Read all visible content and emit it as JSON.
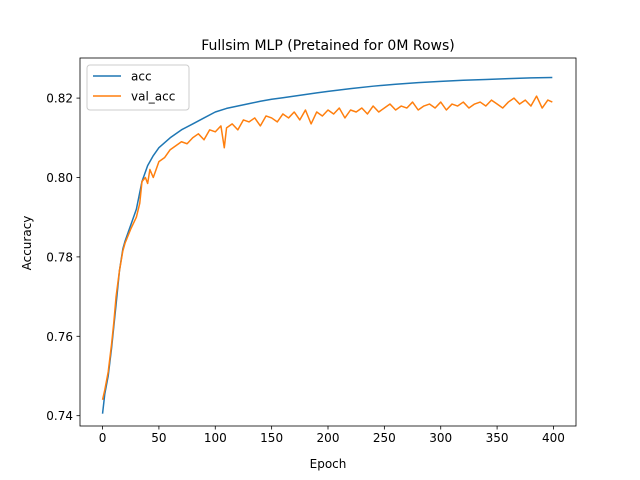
{
  "chart_data": {
    "type": "line",
    "title": "Fullsim MLP (Pretained for 0M Rows)",
    "xlabel": "Epoch",
    "ylabel": "Accuracy",
    "xlim": [
      -20,
      420
    ],
    "ylim": [
      0.7374,
      0.8301
    ],
    "xticks": [
      0,
      50,
      100,
      150,
      200,
      250,
      300,
      350,
      400
    ],
    "yticks": [
      0.74,
      0.76,
      0.78,
      0.8,
      0.82
    ],
    "ytick_labels": [
      "0.74",
      "0.76",
      "0.78",
      "0.80",
      "0.82"
    ],
    "grid": false,
    "legend_position": "top-left",
    "series": [
      {
        "name": "acc",
        "color": "#1f77b4",
        "x": [
          0,
          2,
          5,
          8,
          10,
          12,
          15,
          18,
          20,
          25,
          30,
          35,
          40,
          45,
          50,
          60,
          70,
          80,
          90,
          100,
          110,
          120,
          130,
          140,
          150,
          160,
          170,
          180,
          190,
          200,
          220,
          240,
          260,
          280,
          300,
          320,
          340,
          360,
          380,
          399
        ],
        "values": [
          0.7405,
          0.7455,
          0.75,
          0.757,
          0.7625,
          0.768,
          0.7765,
          0.782,
          0.784,
          0.788,
          0.792,
          0.799,
          0.803,
          0.8055,
          0.8075,
          0.81,
          0.812,
          0.8135,
          0.815,
          0.8165,
          0.8174,
          0.818,
          0.8186,
          0.8192,
          0.8197,
          0.8201,
          0.8205,
          0.8209,
          0.8213,
          0.8217,
          0.8224,
          0.823,
          0.8235,
          0.8239,
          0.8242,
          0.8245,
          0.8247,
          0.8249,
          0.8251,
          0.8252
        ]
      },
      {
        "name": "val_acc",
        "color": "#ff7f0e",
        "x": [
          0,
          2,
          5,
          8,
          10,
          12,
          15,
          18,
          20,
          25,
          30,
          33,
          35,
          38,
          40,
          42,
          45,
          50,
          55,
          60,
          65,
          70,
          75,
          80,
          85,
          90,
          95,
          100,
          105,
          108,
          110,
          115,
          120,
          125,
          130,
          135,
          140,
          145,
          150,
          155,
          160,
          165,
          170,
          175,
          180,
          185,
          190,
          195,
          200,
          205,
          210,
          215,
          220,
          225,
          230,
          235,
          240,
          245,
          250,
          255,
          260,
          265,
          270,
          275,
          280,
          285,
          290,
          295,
          300,
          305,
          310,
          315,
          320,
          325,
          330,
          335,
          340,
          345,
          350,
          355,
          360,
          365,
          370,
          375,
          380,
          385,
          390,
          395,
          399
        ],
        "values": [
          0.744,
          0.7465,
          0.751,
          0.758,
          0.7635,
          0.77,
          0.7765,
          0.7815,
          0.7835,
          0.787,
          0.79,
          0.7935,
          0.799,
          0.8,
          0.7985,
          0.802,
          0.8,
          0.804,
          0.805,
          0.807,
          0.808,
          0.809,
          0.8085,
          0.81,
          0.811,
          0.8095,
          0.812,
          0.8115,
          0.813,
          0.8075,
          0.8125,
          0.8135,
          0.812,
          0.8145,
          0.814,
          0.815,
          0.813,
          0.8155,
          0.815,
          0.814,
          0.816,
          0.815,
          0.8165,
          0.8145,
          0.817,
          0.8135,
          0.8165,
          0.8155,
          0.817,
          0.816,
          0.8175,
          0.815,
          0.817,
          0.8165,
          0.8175,
          0.816,
          0.818,
          0.8165,
          0.8175,
          0.8185,
          0.817,
          0.818,
          0.8175,
          0.819,
          0.817,
          0.818,
          0.8185,
          0.8175,
          0.819,
          0.817,
          0.8185,
          0.818,
          0.819,
          0.8175,
          0.8185,
          0.819,
          0.818,
          0.8195,
          0.8185,
          0.8175,
          0.819,
          0.82,
          0.8185,
          0.8195,
          0.818,
          0.8205,
          0.8175,
          0.8195,
          0.819
        ]
      }
    ]
  }
}
